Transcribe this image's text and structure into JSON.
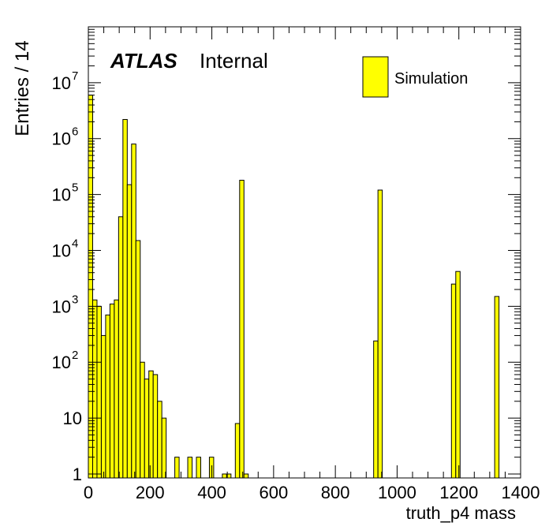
{
  "chart_data": {
    "type": "bar",
    "title": "",
    "xlabel": "truth_p4 mass",
    "ylabel": "Entries / 14",
    "xlim": [
      0,
      1400
    ],
    "ylim": [
      0.85,
      100000000
    ],
    "log_y": true,
    "bin_width": 14,
    "grid": false,
    "legend_position": "top-right",
    "fill_color": "#ffff00",
    "edge_color": "#000000",
    "label": {
      "experiment": "ATLAS",
      "status": "Internal"
    },
    "legend": [
      "Simulation"
    ],
    "x_ticks": [
      "0",
      "200",
      "400",
      "600",
      "800",
      "1000",
      "1200",
      "1400"
    ],
    "y_ticks": [
      {
        "value": 1,
        "base": "1",
        "exp": ""
      },
      {
        "value": 10,
        "base": "10",
        "exp": ""
      },
      {
        "value": 100,
        "base": "10",
        "exp": "2"
      },
      {
        "value": 1000,
        "base": "10",
        "exp": "3"
      },
      {
        "value": 10000,
        "base": "10",
        "exp": "4"
      },
      {
        "value": 100000,
        "base": "10",
        "exp": "5"
      },
      {
        "value": 1000000,
        "base": "10",
        "exp": "6"
      },
      {
        "value": 10000000,
        "base": "10",
        "exp": "7"
      }
    ],
    "bins": [
      {
        "x": 0,
        "y": 6000000
      },
      {
        "x": 14,
        "y": 1300
      },
      {
        "x": 28,
        "y": 1000
      },
      {
        "x": 42,
        "y": 300
      },
      {
        "x": 56,
        "y": 700
      },
      {
        "x": 70,
        "y": 1100
      },
      {
        "x": 84,
        "y": 1300
      },
      {
        "x": 98,
        "y": 40000
      },
      {
        "x": 112,
        "y": 2200000
      },
      {
        "x": 126,
        "y": 150000
      },
      {
        "x": 140,
        "y": 800000
      },
      {
        "x": 154,
        "y": 15000
      },
      {
        "x": 168,
        "y": 100
      },
      {
        "x": 182,
        "y": 50
      },
      {
        "x": 196,
        "y": 70
      },
      {
        "x": 210,
        "y": 60
      },
      {
        "x": 224,
        "y": 20
      },
      {
        "x": 238,
        "y": 10
      },
      {
        "x": 280,
        "y": 2
      },
      {
        "x": 322,
        "y": 2
      },
      {
        "x": 350,
        "y": 2
      },
      {
        "x": 392,
        "y": 2
      },
      {
        "x": 434,
        "y": 1
      },
      {
        "x": 448,
        "y": 1
      },
      {
        "x": 476,
        "y": 8
      },
      {
        "x": 490,
        "y": 180000
      },
      {
        "x": 504,
        "y": 1
      },
      {
        "x": 924,
        "y": 240
      },
      {
        "x": 938,
        "y": 120000
      },
      {
        "x": 1176,
        "y": 2500
      },
      {
        "x": 1190,
        "y": 4200
      },
      {
        "x": 1316,
        "y": 1500
      }
    ]
  }
}
